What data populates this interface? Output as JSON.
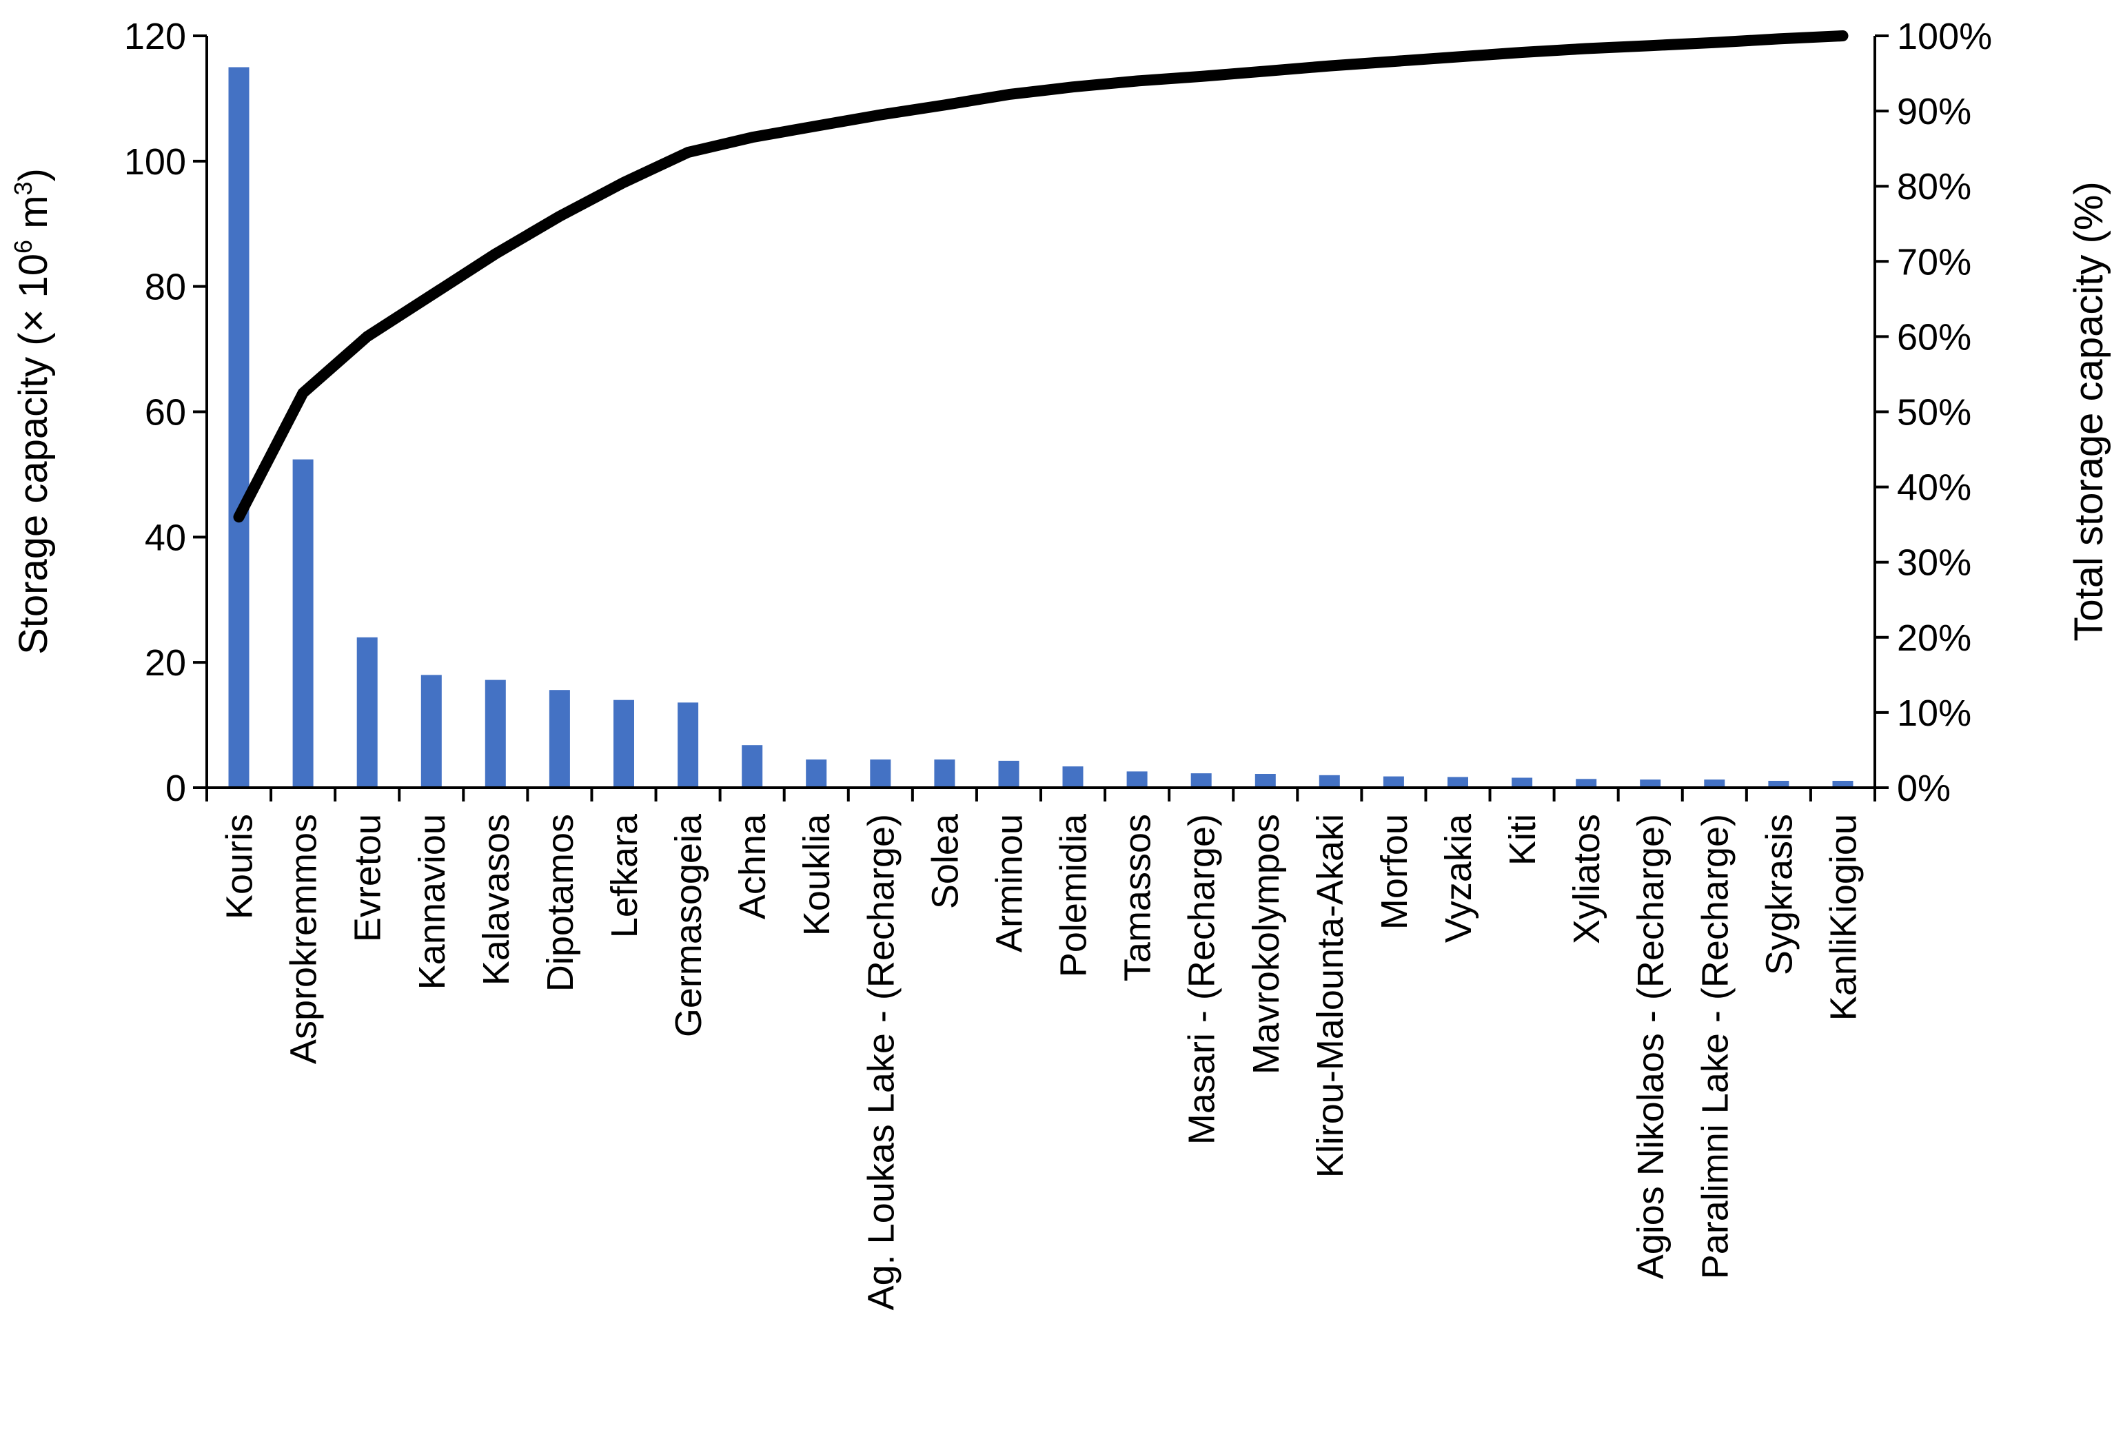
{
  "chart_data": {
    "type": "bar+line",
    "title": "",
    "categories": [
      "Kouris",
      "Asprokremmos",
      "Evretou",
      "Kannaviou",
      "Kalavasos",
      "Dipotamos",
      "Lefkara",
      "Germasogeia",
      "Achna",
      "Kouklia",
      "Ag. Loukas Lake - (Recharge)",
      "Solea",
      "Arminou",
      "Polemidia",
      "Tamassos",
      "Masari - (Recharge)",
      "Mavrokolympos",
      "Klirou-Malounta-Akaki",
      "Morfou",
      "Vyzakia",
      "Kiti",
      "Xyliatos",
      "Agios Nikolaos - (Recharge)",
      "Paralimni Lake - (Recharge)",
      "Sygkrasis",
      "KanliKiogiou"
    ],
    "series": [
      {
        "name": "Storage capacity",
        "type": "bar",
        "axis": "left",
        "color": "#4472c4",
        "values": [
          115,
          52.4,
          24,
          18,
          17.2,
          15.6,
          14,
          13.6,
          6.8,
          4.5,
          4.5,
          4.5,
          4.3,
          3.4,
          2.6,
          2.3,
          2.2,
          2.0,
          1.8,
          1.7,
          1.6,
          1.4,
          1.3,
          1.3,
          1.1,
          1.1
        ]
      },
      {
        "name": "Total storage capacity",
        "type": "line",
        "axis": "right",
        "color": "#000000",
        "values": [
          36,
          52.5,
          60,
          65.5,
          71,
          76,
          80.5,
          84.5,
          86.5,
          88,
          89.5,
          90.8,
          92.2,
          93.2,
          94,
          94.6,
          95.3,
          96,
          96.6,
          97.2,
          97.8,
          98.3,
          98.7,
          99.1,
          99.6,
          100
        ]
      }
    ],
    "left_axis": {
      "label_main": "Storage capacity (× 10",
      "label_sup": "6",
      "label_unit": " m",
      "label_sup2": "3",
      "label_close": ")",
      "min": 0,
      "max": 120,
      "ticks": [
        "0",
        "20",
        "40",
        "60",
        "80",
        "100",
        "120"
      ]
    },
    "right_axis": {
      "label": "Total storage capacity (%)",
      "min": 0,
      "max": 100,
      "ticks": [
        "0%",
        "10%",
        "20%",
        "30%",
        "40%",
        "50%",
        "60%",
        "70%",
        "80%",
        "90%",
        "100%"
      ]
    },
    "grid": false,
    "legend": "none"
  }
}
